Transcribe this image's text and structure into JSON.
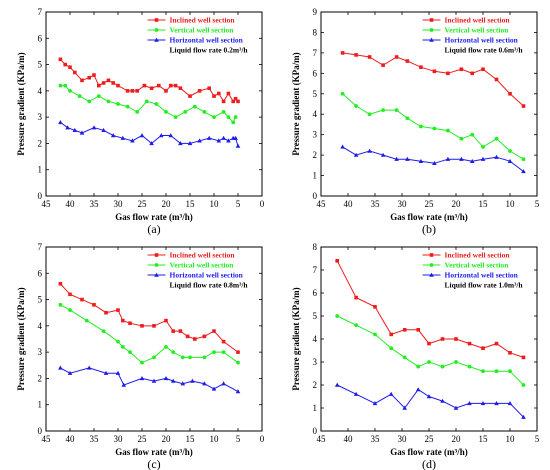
{
  "figure": {
    "colors": {
      "inclined": "#ee1c1c",
      "vertical": "#22ee22",
      "horizontal": "#1c1cee"
    }
  },
  "chart_data": [
    {
      "panel_label": "(a)",
      "type": "line",
      "xlabel": "Gas flow rate (m³/h)",
      "ylabel": "Pressure gradient (KPa/m)",
      "xlim": [
        45,
        0
      ],
      "ylim": [
        0,
        7
      ],
      "xticks": [
        45,
        40,
        35,
        30,
        25,
        20,
        15,
        10,
        5,
        0
      ],
      "yticks": [
        0,
        1,
        2,
        3,
        4,
        5,
        6,
        7
      ],
      "legend_position": "top-right",
      "note": "Liquid flow rate 0.2m³/h",
      "series": [
        {
          "name": "Inclined well section",
          "color": "#ee1c1c",
          "marker": "square",
          "x": [
            42,
            41,
            40,
            39,
            37.5,
            36,
            35,
            34,
            33,
            32,
            31,
            30,
            28,
            27,
            26,
            24.5,
            23,
            21.5,
            20,
            19,
            18,
            17,
            15,
            13,
            11,
            10,
            9,
            8,
            7,
            6,
            5.5,
            5
          ],
          "y": [
            5.2,
            5.0,
            4.9,
            4.7,
            4.4,
            4.5,
            4.6,
            4.2,
            4.3,
            4.4,
            4.3,
            4.2,
            4.0,
            4.0,
            4.0,
            4.2,
            4.1,
            4.2,
            4.0,
            4.2,
            4.2,
            4.1,
            3.8,
            4.0,
            4.1,
            3.8,
            3.9,
            3.6,
            3.9,
            3.6,
            3.7,
            3.6
          ]
        },
        {
          "name": "Vertical well section",
          "color": "#22ee22",
          "marker": "circle",
          "x": [
            42,
            41,
            40,
            38,
            36,
            34,
            32,
            30,
            28,
            26,
            24,
            22,
            20,
            18,
            16,
            14,
            12,
            10,
            8,
            7,
            6,
            5.5
          ],
          "y": [
            4.2,
            4.2,
            4.0,
            3.8,
            3.6,
            3.8,
            3.6,
            3.5,
            3.4,
            3.2,
            3.6,
            3.5,
            3.2,
            3.0,
            3.2,
            3.4,
            3.2,
            3.0,
            3.2,
            3.0,
            2.8,
            3.0
          ]
        },
        {
          "name": "Horizontal well section",
          "color": "#1c1cee",
          "marker": "triangle",
          "x": [
            42,
            40.5,
            39,
            37.5,
            35,
            33,
            31,
            29,
            27,
            25,
            23,
            21,
            19,
            17,
            15,
            13,
            11,
            9,
            8,
            7,
            6,
            5.5,
            5
          ],
          "y": [
            2.8,
            2.6,
            2.5,
            2.4,
            2.6,
            2.5,
            2.3,
            2.2,
            2.1,
            2.3,
            2.0,
            2.3,
            2.3,
            2.0,
            2.0,
            2.1,
            2.2,
            2.1,
            2.2,
            2.1,
            2.2,
            2.2,
            1.9
          ]
        }
      ]
    },
    {
      "panel_label": "(b)",
      "type": "line",
      "xlabel": "Gas flow rate (m³/h)",
      "ylabel": "Pressure gradient (KPa/m)",
      "xlim": [
        45,
        5
      ],
      "ylim": [
        0,
        9
      ],
      "xticks": [
        45,
        40,
        35,
        30,
        25,
        20,
        15,
        10,
        5
      ],
      "yticks": [
        0,
        1,
        2,
        3,
        4,
        5,
        6,
        7,
        8,
        9
      ],
      "legend_position": "top-right",
      "note": "Liquid flow rate 0.6m³/h",
      "series": [
        {
          "name": "Inclined well section",
          "color": "#ee1c1c",
          "marker": "square",
          "x": [
            41,
            38.5,
            36,
            33.5,
            31,
            29,
            26.5,
            24,
            21.5,
            19,
            17,
            15,
            12.5,
            10,
            7.5
          ],
          "y": [
            7.0,
            6.9,
            6.8,
            6.4,
            6.8,
            6.6,
            6.3,
            6.1,
            6.0,
            6.2,
            6.0,
            6.2,
            5.7,
            5.0,
            4.4
          ]
        },
        {
          "name": "Vertical well section",
          "color": "#22ee22",
          "marker": "circle",
          "x": [
            41,
            38.5,
            36,
            33.5,
            31,
            29,
            26.5,
            24,
            21.5,
            19,
            17,
            15,
            12.5,
            10,
            7.5
          ],
          "y": [
            5.0,
            4.4,
            4.0,
            4.2,
            4.2,
            3.8,
            3.4,
            3.3,
            3.2,
            2.8,
            3.0,
            2.4,
            2.8,
            2.2,
            1.8
          ]
        },
        {
          "name": "Horizontal well section",
          "color": "#1c1cee",
          "marker": "triangle",
          "x": [
            41,
            38.5,
            36,
            33.5,
            31,
            29,
            26.5,
            24,
            21.5,
            19,
            17,
            15,
            12.5,
            10,
            7.5
          ],
          "y": [
            2.4,
            2.0,
            2.2,
            2.0,
            1.8,
            1.8,
            1.7,
            1.6,
            1.8,
            1.8,
            1.7,
            1.8,
            1.9,
            1.7,
            1.2
          ]
        }
      ]
    },
    {
      "panel_label": "(c)",
      "type": "line",
      "xlabel": "Gas flow rate (m³/h)",
      "ylabel": "Pressure gradient (KPa/m)",
      "xlim": [
        45,
        0
      ],
      "ylim": [
        0,
        7
      ],
      "xticks": [
        45,
        40,
        35,
        30,
        25,
        20,
        15,
        10,
        5,
        0
      ],
      "yticks": [
        0,
        1,
        2,
        3,
        4,
        5,
        6,
        7
      ],
      "legend_position": "top-right",
      "note": "Liquid flow rate 0.8m³/h",
      "series": [
        {
          "name": "Inclined well section",
          "color": "#ee1c1c",
          "marker": "square",
          "x": [
            42,
            40,
            37.5,
            35,
            32.5,
            30,
            29,
            27.5,
            25,
            22.5,
            20,
            18.5,
            17,
            15.5,
            14,
            12,
            10,
            8,
            5
          ],
          "y": [
            5.6,
            5.2,
            5.0,
            4.8,
            4.5,
            4.6,
            4.2,
            4.1,
            4.0,
            4.0,
            4.2,
            3.8,
            3.8,
            3.6,
            3.5,
            3.6,
            3.8,
            3.4,
            3.0
          ]
        },
        {
          "name": "Vertical well section",
          "color": "#22ee22",
          "marker": "circle",
          "x": [
            42,
            40,
            36.5,
            33,
            30,
            29,
            27.5,
            25,
            22.5,
            20,
            18.5,
            16.5,
            15,
            12,
            10,
            8,
            5
          ],
          "y": [
            4.8,
            4.6,
            4.2,
            3.8,
            3.4,
            3.2,
            3.0,
            2.6,
            2.8,
            3.2,
            3.0,
            2.8,
            2.8,
            2.8,
            3.0,
            3.0,
            2.6
          ]
        },
        {
          "name": "Horizontal well section",
          "color": "#1c1cee",
          "marker": "triangle",
          "x": [
            42,
            40,
            36,
            32.5,
            30,
            28.8,
            25,
            22.5,
            20,
            18.5,
            16.5,
            14.5,
            12,
            10,
            8,
            5
          ],
          "y": [
            2.4,
            2.2,
            2.4,
            2.2,
            2.2,
            1.75,
            2.0,
            1.9,
            2.0,
            1.9,
            1.8,
            1.9,
            1.8,
            1.6,
            1.8,
            1.5
          ]
        }
      ]
    },
    {
      "panel_label": "(d)",
      "type": "line",
      "xlabel": "Gas flow rate (m³/h)",
      "ylabel": "Pressure gradient (KPa/m)",
      "xlim": [
        45,
        5
      ],
      "ylim": [
        0,
        8
      ],
      "xticks": [
        45,
        40,
        35,
        30,
        25,
        20,
        15,
        10,
        5
      ],
      "yticks": [
        0,
        1,
        2,
        3,
        4,
        5,
        6,
        7,
        8
      ],
      "legend_position": "top-right",
      "note": "Liquid flow rate 1.0m³/h",
      "series": [
        {
          "name": "Inclined well section",
          "color": "#ee1c1c",
          "marker": "square",
          "x": [
            42,
            38.5,
            35,
            32,
            29.5,
            27,
            25,
            22.5,
            20,
            17.5,
            15,
            12.5,
            10,
            7.5
          ],
          "y": [
            7.4,
            5.8,
            5.4,
            4.2,
            4.4,
            4.4,
            3.8,
            4.0,
            4.0,
            3.8,
            3.6,
            3.8,
            3.4,
            3.2
          ]
        },
        {
          "name": "Vertical well section",
          "color": "#22ee22",
          "marker": "circle",
          "x": [
            42,
            38.5,
            35,
            32,
            29.5,
            27,
            25,
            22.5,
            20,
            17.5,
            15,
            12.5,
            10,
            7.5
          ],
          "y": [
            5.0,
            4.6,
            4.2,
            3.6,
            3.2,
            2.8,
            3.0,
            2.8,
            3.0,
            2.8,
            2.6,
            2.6,
            2.6,
            2.0
          ]
        },
        {
          "name": "Horizontal well section",
          "color": "#1c1cee",
          "marker": "triangle",
          "x": [
            42,
            38.5,
            35,
            32,
            29.5,
            27,
            25,
            22.5,
            20,
            17.5,
            15,
            12.5,
            10,
            7.5
          ],
          "y": [
            2.0,
            1.6,
            1.2,
            1.6,
            1.0,
            1.8,
            1.5,
            1.3,
            1.0,
            1.2,
            1.2,
            1.2,
            1.2,
            0.6
          ]
        }
      ]
    }
  ]
}
